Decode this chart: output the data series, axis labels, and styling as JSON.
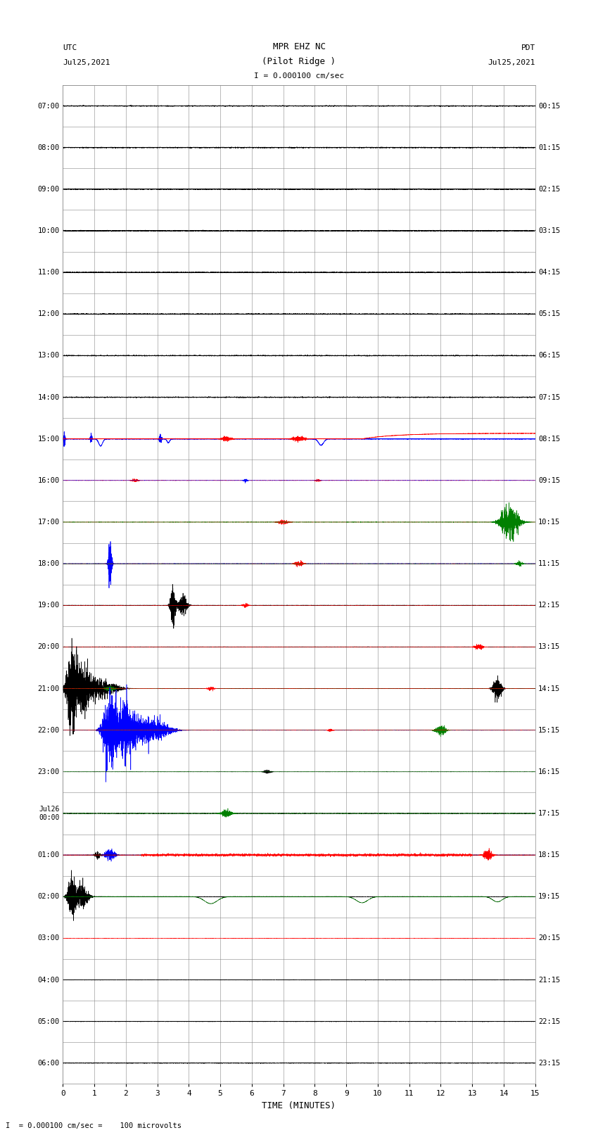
{
  "title_line1": "MPR EHZ NC",
  "title_line2": "(Pilot Ridge )",
  "title_scale": "I = 0.000100 cm/sec",
  "label_utc": "UTC",
  "label_date_left": "Jul25,2021",
  "label_pdt": "PDT",
  "label_date_right": "Jul25,2021",
  "xlabel": "TIME (MINUTES)",
  "footer": "I  = 0.000100 cm/sec =    100 microvolts",
  "bg_color": "#ffffff",
  "grid_color": "#aaaaaa",
  "left_times": [
    "07:00",
    "08:00",
    "09:00",
    "10:00",
    "11:00",
    "12:00",
    "13:00",
    "14:00",
    "15:00",
    "16:00",
    "17:00",
    "18:00",
    "19:00",
    "20:00",
    "21:00",
    "22:00",
    "23:00",
    "Jul26\n00:00",
    "01:00",
    "02:00",
    "03:00",
    "04:00",
    "05:00",
    "06:00"
  ],
  "right_times": [
    "00:15",
    "01:15",
    "02:15",
    "03:15",
    "04:15",
    "05:15",
    "06:15",
    "07:15",
    "08:15",
    "09:15",
    "10:15",
    "11:15",
    "12:15",
    "13:15",
    "14:15",
    "15:15",
    "16:15",
    "17:15",
    "18:15",
    "19:15",
    "20:15",
    "21:15",
    "22:15",
    "23:15"
  ],
  "n_rows": 24,
  "n_minutes": 15,
  "xticks": [
    0,
    1,
    2,
    3,
    4,
    5,
    6,
    7,
    8,
    9,
    10,
    11,
    12,
    13,
    14,
    15
  ]
}
